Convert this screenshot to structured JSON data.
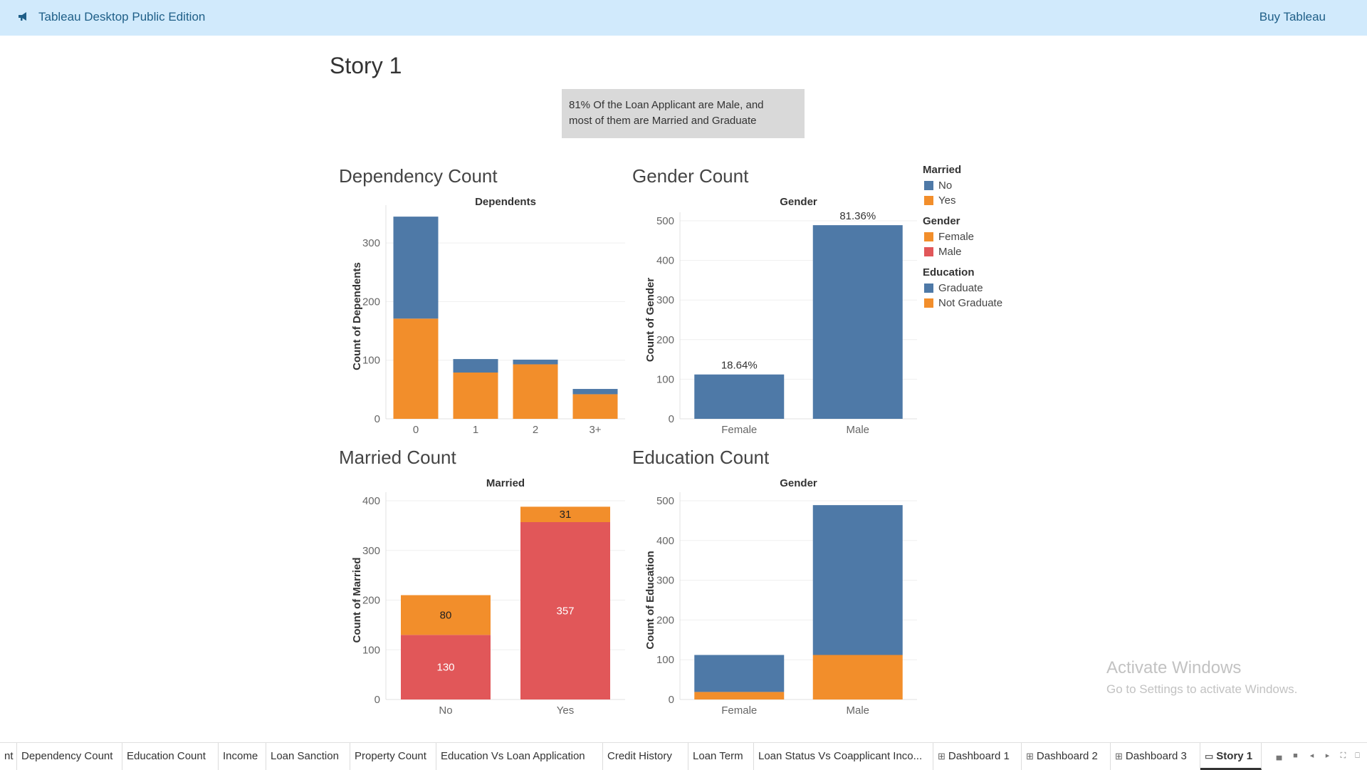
{
  "topbar": {
    "app_title": "Tableau Desktop Public Edition",
    "buy_label": "Buy Tableau"
  },
  "story": {
    "title": "Story 1",
    "caption_line1": "81% Of the Loan Applicant are Male, and",
    "caption_line2": "most of them are Married and Graduate"
  },
  "colors": {
    "blue": "#4e79a7",
    "orange": "#f28e2b",
    "red": "#e15759"
  },
  "legend": {
    "groups": [
      {
        "title": "Married",
        "items": [
          {
            "label": "No",
            "color": "#4e79a7"
          },
          {
            "label": "Yes",
            "color": "#f28e2b"
          }
        ]
      },
      {
        "title": "Gender",
        "items": [
          {
            "label": "Female",
            "color": "#f28e2b"
          },
          {
            "label": "Male",
            "color": "#e15759"
          }
        ]
      },
      {
        "title": "Education",
        "items": [
          {
            "label": "Graduate",
            "color": "#4e79a7"
          },
          {
            "label": "Not Graduate",
            "color": "#f28e2b"
          }
        ]
      }
    ]
  },
  "chart_data": [
    {
      "id": "dep",
      "type": "bar",
      "title": "Dependency Count",
      "header": "Dependents",
      "ylabel": "Count of Dependents",
      "categories": [
        "0",
        "1",
        "2",
        "3+"
      ],
      "ylim": [
        0,
        350
      ],
      "yticks": [
        0,
        100,
        200,
        300
      ],
      "series": [
        {
          "name": "Yes",
          "color": "#f28e2b",
          "values": [
            171,
            79,
            93,
            42
          ]
        },
        {
          "name": "No",
          "color": "#4e79a7",
          "values": [
            174,
            23,
            8,
            9
          ]
        }
      ],
      "labels": []
    },
    {
      "id": "gen",
      "type": "bar",
      "title": "Gender Count",
      "header": "Gender",
      "ylabel": "Count of Gender",
      "categories": [
        "Female",
        "Male"
      ],
      "ylim": [
        0,
        500
      ],
      "yticks": [
        0,
        100,
        200,
        300,
        400,
        500
      ],
      "series": [
        {
          "color": "#4e79a7",
          "values": [
            112,
            489
          ]
        }
      ],
      "labels": [
        {
          "category": 0,
          "y": 112,
          "text": "18.64%"
        },
        {
          "category": 1,
          "y": 489,
          "text": "81.36%"
        }
      ]
    },
    {
      "id": "mar",
      "type": "bar",
      "title": "Married Count",
      "header": "Married",
      "ylabel": "Count of Married",
      "categories": [
        "No",
        "Yes"
      ],
      "ylim": [
        0,
        400
      ],
      "yticks": [
        0,
        100,
        200,
        300,
        400
      ],
      "series": [
        {
          "name": "Male",
          "color": "#e15759",
          "values": [
            130,
            357
          ]
        },
        {
          "name": "Female",
          "color": "#f28e2b",
          "values": [
            80,
            31
          ]
        }
      ],
      "segment_labels": [
        [
          "130",
          "357"
        ],
        [
          "80",
          "31"
        ]
      ],
      "segment_label_colors": [
        "#ffffff",
        "#222222"
      ]
    },
    {
      "id": "edu",
      "type": "bar",
      "title": "Education Count",
      "header": "Gender",
      "ylabel": "Count of Education",
      "categories": [
        "Female",
        "Male"
      ],
      "ylim": [
        0,
        500
      ],
      "yticks": [
        0,
        100,
        200,
        300,
        400,
        500
      ],
      "series": [
        {
          "name": "Not Graduate",
          "color": "#f28e2b",
          "values": [
            19,
            112
          ]
        },
        {
          "name": "Graduate",
          "color": "#4e79a7",
          "values": [
            93,
            377
          ]
        }
      ],
      "labels": []
    }
  ],
  "tabs": [
    {
      "label": "nt",
      "icon": ""
    },
    {
      "label": "Dependency Count",
      "icon": ""
    },
    {
      "label": "Education Count",
      "icon": ""
    },
    {
      "label": "Income",
      "icon": ""
    },
    {
      "label": "Loan Sanction",
      "icon": ""
    },
    {
      "label": "Property Count",
      "icon": ""
    },
    {
      "label": "Education Vs Loan Application",
      "icon": ""
    },
    {
      "label": "Credit History",
      "icon": ""
    },
    {
      "label": "Loan Term",
      "icon": ""
    },
    {
      "label": "Loan Status Vs Coapplicant Inco...",
      "icon": ""
    },
    {
      "label": "Dashboard 1",
      "icon": "dashboard-icon"
    },
    {
      "label": "Dashboard 2",
      "icon": "dashboard-icon"
    },
    {
      "label": "Dashboard 3",
      "icon": "dashboard-icon"
    },
    {
      "label": "Story 1",
      "icon": "story-icon",
      "active": true
    }
  ],
  "watermark": {
    "line1": "Activate Windows",
    "line2": "Go to Settings to activate Windows."
  }
}
